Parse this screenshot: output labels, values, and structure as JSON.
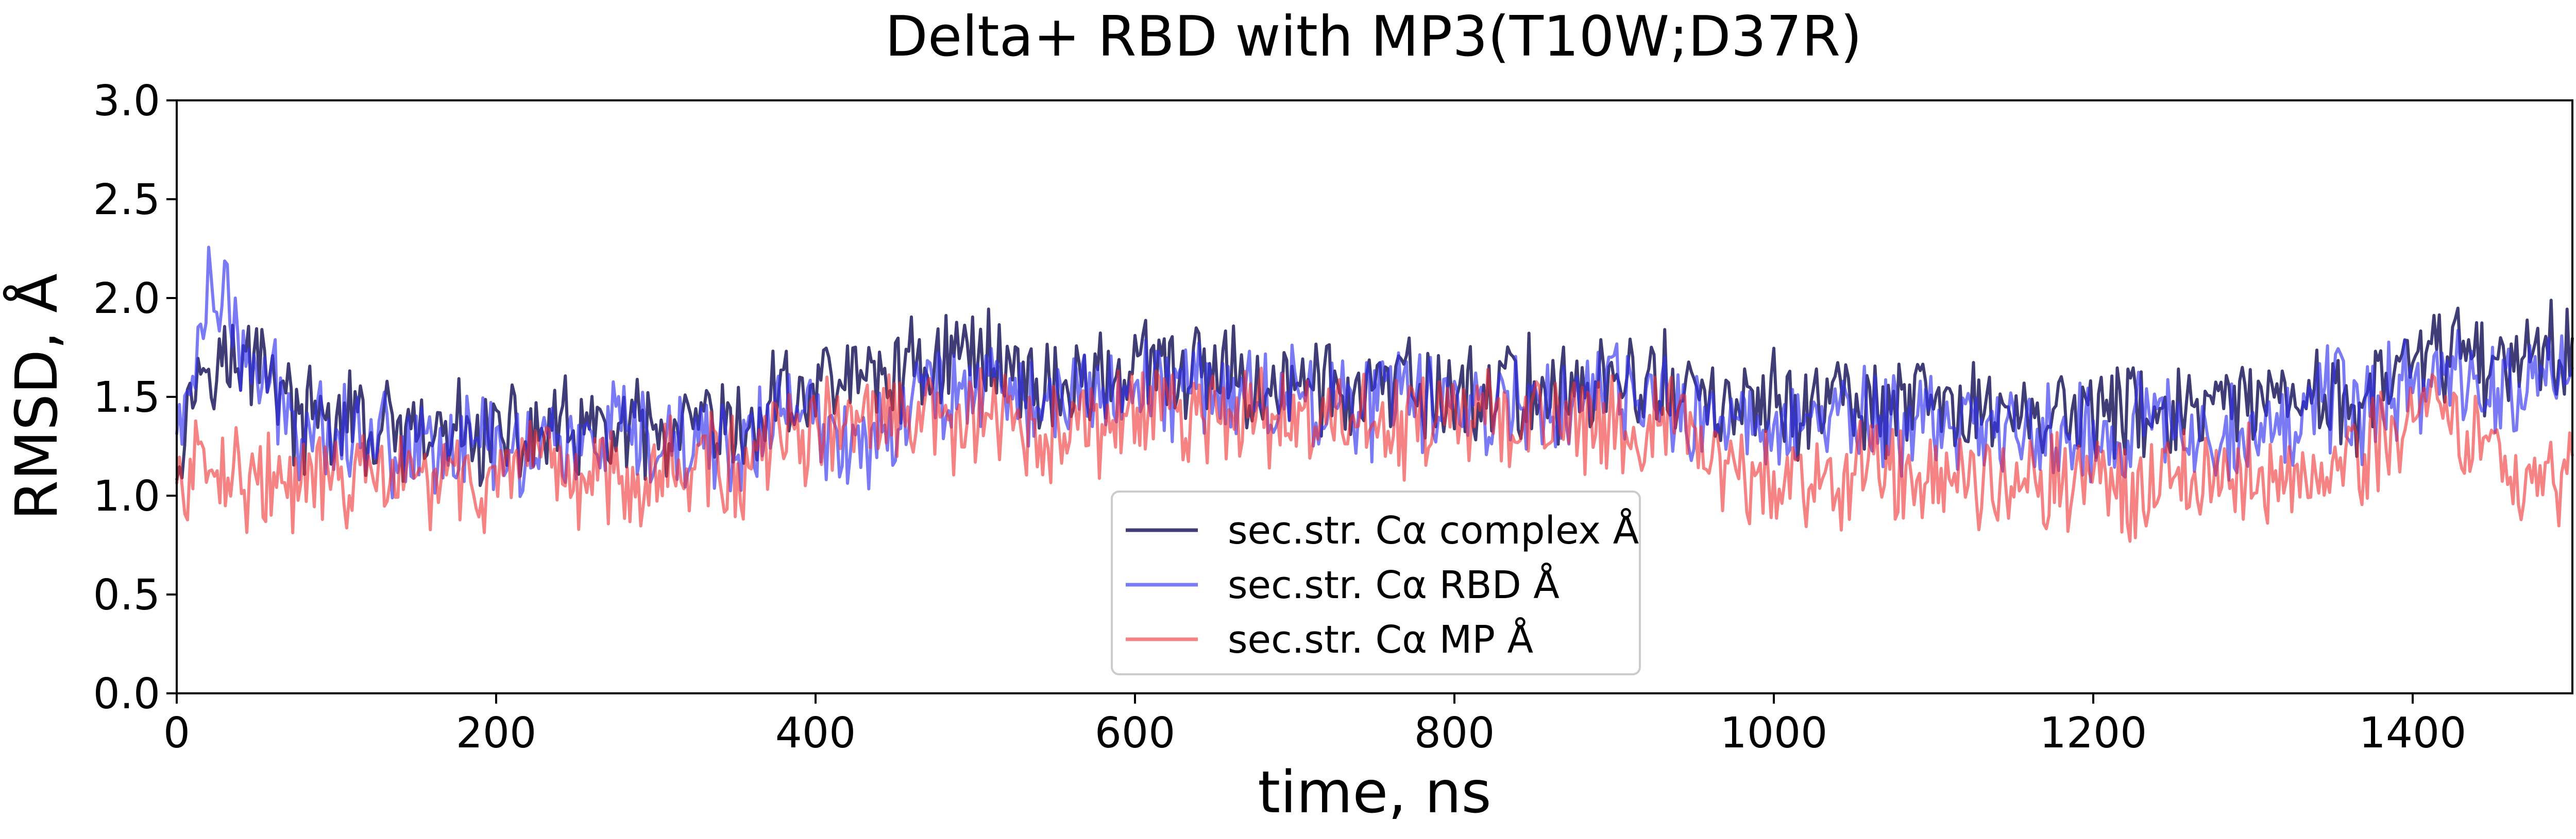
{
  "chart_data": {
    "type": "line",
    "title": "Delta+ RBD with MP3(T10W;D37R)",
    "xlabel": "time, ns",
    "ylabel": "RMSD, Å",
    "xlim": [
      0,
      1500
    ],
    "ylim": [
      0.0,
      3.0
    ],
    "xticks": [
      "0",
      "200",
      "400",
      "600",
      "800",
      "1000",
      "1200",
      "1400"
    ],
    "yticks": [
      "0.0",
      "0.5",
      "1.0",
      "1.5",
      "2.0",
      "2.5",
      "3.0"
    ],
    "legend_position": "lower-center",
    "grid": false,
    "series": [
      {
        "name": "sec.str. Cα complex Å",
        "color": "#1e1b5e",
        "opacity": 0.85,
        "values": [
          1.25,
          1.55,
          1.75,
          1.7,
          1.6,
          1.75,
          1.65,
          1.45,
          1.35,
          1.4,
          1.35,
          1.4,
          1.3,
          1.32,
          1.3,
          1.25,
          1.28,
          1.3,
          1.32,
          1.3,
          1.3,
          1.28,
          1.3,
          1.32,
          1.35,
          1.28,
          1.3,
          1.32,
          1.3,
          1.32,
          1.28,
          1.25,
          1.3,
          1.35,
          1.3,
          1.3,
          1.3,
          1.45,
          1.55,
          1.5,
          1.55,
          1.6,
          1.62,
          1.58,
          1.6,
          1.62,
          1.65,
          1.7,
          1.68,
          1.75,
          1.7,
          1.72,
          1.68,
          1.6,
          1.55,
          1.55,
          1.55,
          1.58,
          1.6,
          1.62,
          1.65,
          1.62,
          1.62,
          1.6,
          1.62,
          1.6,
          1.6,
          1.58,
          1.55,
          1.55,
          1.55,
          1.58,
          1.55,
          1.52,
          1.52,
          1.5,
          1.52,
          1.55,
          1.52,
          1.5,
          1.5,
          1.52,
          1.5,
          1.55,
          1.55,
          1.52,
          1.55,
          1.52,
          1.55,
          1.58,
          1.55,
          1.55,
          1.58,
          1.55,
          1.55,
          1.5,
          1.45,
          1.45,
          1.45,
          1.42,
          1.45,
          1.48,
          1.45,
          1.45,
          1.5,
          1.45,
          1.45,
          1.42,
          1.42,
          1.45,
          1.45,
          1.42,
          1.42,
          1.45,
          1.42,
          1.45,
          1.42,
          1.4,
          1.42,
          1.42,
          1.42,
          1.4,
          1.42,
          1.45,
          1.42,
          1.4,
          1.42,
          1.4,
          1.42,
          1.45,
          1.42,
          1.45,
          1.42,
          1.45,
          1.5,
          1.55,
          1.5,
          1.45,
          1.55,
          1.6,
          1.62,
          1.7,
          1.75,
          1.78,
          1.72,
          1.65,
          1.7,
          1.75,
          1.78,
          1.72,
          1.8
        ]
      },
      {
        "name": "sec.str. Cα RBD Å",
        "color": "#3333ee",
        "opacity": 0.65,
        "values": [
          1.3,
          1.6,
          2.05,
          2.0,
          1.7,
          1.6,
          1.55,
          1.4,
          1.35,
          1.4,
          1.32,
          1.35,
          1.3,
          1.3,
          1.25,
          1.28,
          1.25,
          1.3,
          1.25,
          1.28,
          1.3,
          1.2,
          1.25,
          1.3,
          1.3,
          1.22,
          1.25,
          1.3,
          1.28,
          1.25,
          1.2,
          1.2,
          1.25,
          1.3,
          1.25,
          1.22,
          1.25,
          1.35,
          1.5,
          1.4,
          1.35,
          1.25,
          1.28,
          1.3,
          1.35,
          1.4,
          1.45,
          1.55,
          1.55,
          1.6,
          1.55,
          1.6,
          1.58,
          1.5,
          1.45,
          1.45,
          1.48,
          1.5,
          1.55,
          1.55,
          1.58,
          1.55,
          1.55,
          1.55,
          1.58,
          1.55,
          1.55,
          1.52,
          1.5,
          1.5,
          1.52,
          1.5,
          1.5,
          1.48,
          1.48,
          1.45,
          1.48,
          1.5,
          1.48,
          1.45,
          1.45,
          1.48,
          1.45,
          1.5,
          1.5,
          1.48,
          1.5,
          1.45,
          1.5,
          1.52,
          1.5,
          1.48,
          1.5,
          1.48,
          1.45,
          1.38,
          1.35,
          1.38,
          1.35,
          1.35,
          1.38,
          1.4,
          1.38,
          1.38,
          1.42,
          1.38,
          1.4,
          1.35,
          1.35,
          1.38,
          1.38,
          1.35,
          1.35,
          1.38,
          1.35,
          1.35,
          1.32,
          1.3,
          1.32,
          1.35,
          1.32,
          1.3,
          1.32,
          1.38,
          1.35,
          1.32,
          1.35,
          1.32,
          1.35,
          1.38,
          1.35,
          1.38,
          1.35,
          1.4,
          1.45,
          1.5,
          1.45,
          1.4,
          1.5,
          1.55,
          1.55,
          1.62,
          1.65,
          1.6,
          1.55,
          1.5,
          1.55,
          1.6,
          1.62,
          1.58,
          1.65
        ]
      },
      {
        "name": "sec.str. Cα MP Å",
        "color": "#f03030",
        "opacity": 0.6,
        "values": [
          1.05,
          1.1,
          1.2,
          1.15,
          1.1,
          1.1,
          1.05,
          1.0,
          1.1,
          1.05,
          1.1,
          1.05,
          1.1,
          1.08,
          1.05,
          1.1,
          1.05,
          1.1,
          1.08,
          1.05,
          1.1,
          1.05,
          1.1,
          1.12,
          1.1,
          1.05,
          1.15,
          1.1,
          1.12,
          1.1,
          1.15,
          1.15,
          1.15,
          1.2,
          1.15,
          1.1,
          1.15,
          1.25,
          1.35,
          1.3,
          1.35,
          1.35,
          1.4,
          1.35,
          1.4,
          1.35,
          1.35,
          1.4,
          1.35,
          1.4,
          1.35,
          1.38,
          1.3,
          1.28,
          1.3,
          1.3,
          1.32,
          1.35,
          1.38,
          1.4,
          1.42,
          1.4,
          1.45,
          1.4,
          1.42,
          1.4,
          1.38,
          1.4,
          1.38,
          1.35,
          1.38,
          1.4,
          1.38,
          1.35,
          1.35,
          1.32,
          1.35,
          1.4,
          1.38,
          1.35,
          1.38,
          1.4,
          1.35,
          1.4,
          1.42,
          1.4,
          1.42,
          1.38,
          1.4,
          1.4,
          1.38,
          1.35,
          1.38,
          1.35,
          1.3,
          1.1,
          1.05,
          1.1,
          1.08,
          1.05,
          1.1,
          1.12,
          1.1,
          1.08,
          1.15,
          1.1,
          1.12,
          1.1,
          1.08,
          1.12,
          1.15,
          1.1,
          1.1,
          1.12,
          1.08,
          1.1,
          1.1,
          1.05,
          1.08,
          1.1,
          1.05,
          1.05,
          1.08,
          1.12,
          1.1,
          1.05,
          1.1,
          1.08,
          1.1,
          1.12,
          1.1,
          1.15,
          1.12,
          1.15,
          1.18,
          1.2,
          1.25,
          1.3,
          1.35,
          1.45,
          1.5,
          1.35,
          1.3,
          1.15,
          1.1,
          1.12,
          1.15,
          1.12,
          1.2
        ]
      }
    ]
  }
}
